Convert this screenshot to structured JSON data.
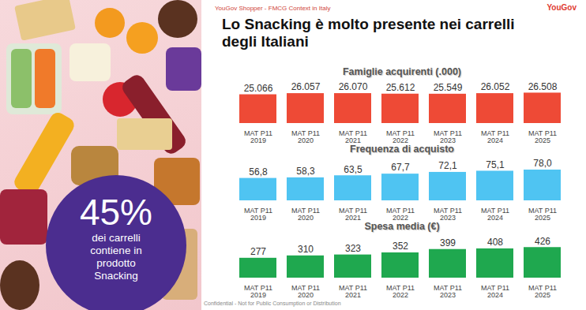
{
  "header": {
    "source": "YouGov Shopper - FMCG Context in Italy",
    "logo": "YouGov",
    "title": "Lo Snacking è molto presente nei carrelli degli Italiani"
  },
  "callout": {
    "headline": "45%",
    "lines": [
      "dei carrelli",
      "contiene in",
      "prodotto",
      "Snacking"
    ]
  },
  "footer": "Confidential - Not for Public Consumption or Distribution",
  "chart_data": [
    {
      "type": "bar",
      "title": "Famiglie acquirenti (.000)",
      "categories": [
        "MAT P11\n2019",
        "MAT P11\n2020",
        "MAT P11\n2021",
        "MAT P11\n2022",
        "MAT P11\n2023",
        "MAT P11\n2024",
        "MAT P11\n2025"
      ],
      "values": [
        25066,
        26057,
        26070,
        25612,
        25549,
        26052,
        26508
      ],
      "value_labels": [
        "25.066",
        "26.057",
        "26.070",
        "25.612",
        "25.549",
        "26.052",
        "26.508"
      ],
      "color": "#ee4a36",
      "ylim": [
        0,
        27500
      ],
      "tick_labels": "x",
      "data_labels": true
    },
    {
      "type": "bar",
      "title": "Frequenza di acquisto",
      "categories": [
        "MAT P11\n2019",
        "MAT P11\n2020",
        "MAT P11\n2021",
        "MAT P11\n2022",
        "MAT P11\n2023",
        "MAT P11\n2024",
        "MAT P11\n2025"
      ],
      "values": [
        56.8,
        58.3,
        63.5,
        67.7,
        72.1,
        75.1,
        78.0
      ],
      "value_labels": [
        "56,8",
        "58,3",
        "63,5",
        "67,7",
        "72,1",
        "75,1",
        "78,0"
      ],
      "color": "#4fc4f2",
      "ylim": [
        0,
        80
      ],
      "tick_labels": "x",
      "data_labels": true
    },
    {
      "type": "bar",
      "title": "Spesa media (€)",
      "categories": [
        "MAT P11\n2019",
        "MAT P11\n2020",
        "MAT P11\n2021",
        "MAT P11\n2022",
        "MAT P11\n2023",
        "MAT P11\n2024",
        "MAT P11\n2025"
      ],
      "values": [
        277,
        310,
        323,
        352,
        399,
        408,
        426
      ],
      "color": "#1fa84f",
      "ylim": [
        0,
        440
      ],
      "tick_labels": "x",
      "data_labels": true
    }
  ]
}
